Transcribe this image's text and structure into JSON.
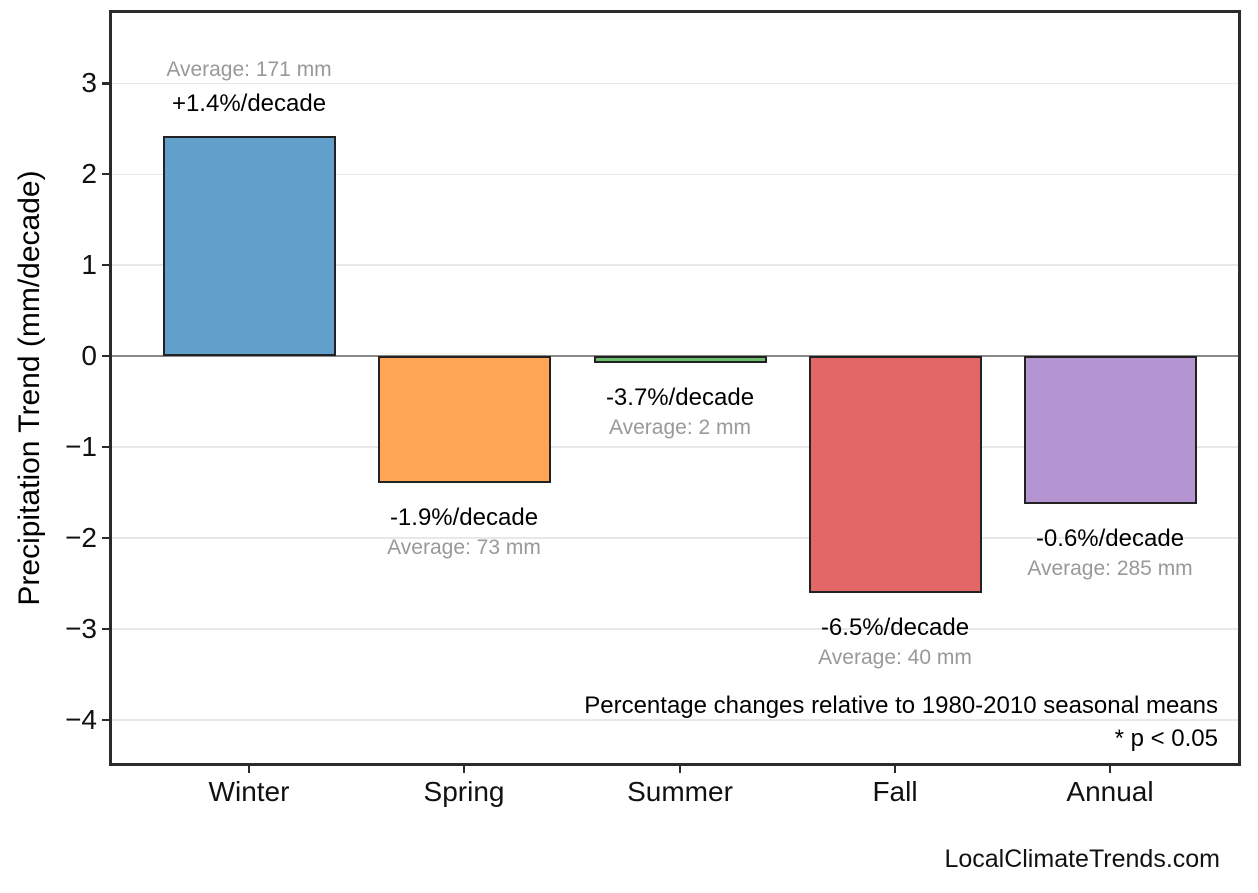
{
  "chart_data": {
    "type": "bar",
    "title": "",
    "xlabel": "",
    "ylabel": "Precipitation Trend (mm/decade)",
    "categories": [
      "Winter",
      "Spring",
      "Summer",
      "Fall",
      "Annual"
    ],
    "values": [
      2.42,
      -1.39,
      -0.08,
      -2.6,
      -1.62
    ],
    "pct_labels": [
      "+1.4%/decade",
      "-1.9%/decade",
      "-3.7%/decade",
      "-6.5%/decade",
      "-0.6%/decade"
    ],
    "avg_labels": [
      "Average: 171 mm",
      "Average: 73 mm",
      "Average: 2 mm",
      "Average: 40 mm",
      "Average: 285 mm"
    ],
    "averages_mm": [
      171,
      73,
      2,
      40,
      285
    ],
    "bar_colors": [
      "#62A0CB",
      "#FFA556",
      "#6BBD6B",
      "#E26868",
      "#B495D1"
    ],
    "bar_edge_color": "#222222",
    "yticks": [
      3,
      2,
      1,
      0,
      -1,
      -2,
      -3,
      -4
    ],
    "ytick_labels": [
      "3",
      "2",
      "1",
      "0",
      "−1",
      "−2",
      "−3",
      "−4"
    ],
    "ylim": [
      -4.5,
      3.8
    ],
    "grid": "horizontal",
    "gridline_color": "#e8e8e8",
    "zero_line_color": "#888888",
    "pct_label_color": "#000000",
    "avg_label_color": "#999999",
    "legend": "none",
    "notes": [
      "Percentage changes relative to 1980-2010 seasonal means",
      "* p < 0.05"
    ]
  },
  "footer": {
    "watermark": "LocalClimateTrends.com"
  }
}
